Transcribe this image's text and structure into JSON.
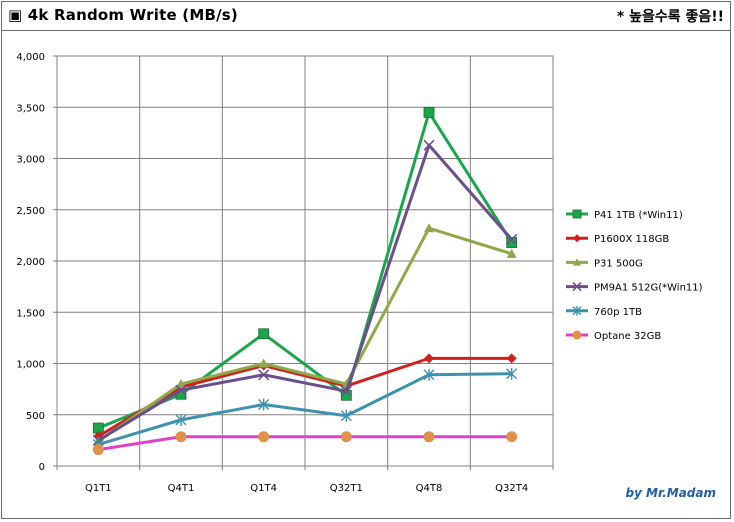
{
  "header": {
    "title": "▣ 4k Random Write (MB/s)",
    "note": "* 높을수록 좋음!!",
    "credit": "by Mr.Madam"
  },
  "chart_data": {
    "type": "line",
    "title": "4k Random Write (MB/s)",
    "categories": [
      "Q1T1",
      "Q4T1",
      "Q1T4",
      "Q32T1",
      "Q4T8",
      "Q32T4"
    ],
    "ylim": [
      0,
      4000
    ],
    "yticks": [
      0,
      500,
      1000,
      1500,
      2000,
      2500,
      3000,
      3500,
      4000
    ],
    "ytick_labels": [
      "0",
      "500",
      "1,000",
      "1,500",
      "2,000",
      "2,500",
      "3,000",
      "3,500",
      "4,000"
    ],
    "grid": true,
    "legend_position": "right",
    "series": [
      {
        "name": "P41 1TB (*Win11)",
        "color": "#1aa64a",
        "marker": "square",
        "values": [
          370,
          700,
          1290,
          690,
          3450,
          2180
        ]
      },
      {
        "name": "P1600X 118GB",
        "color": "#d01f1f",
        "marker": "diamond",
        "values": [
          290,
          770,
          980,
          780,
          1050,
          1050
        ]
      },
      {
        "name": "P31 500G",
        "color": "#8fa84a",
        "marker": "triangle",
        "values": [
          240,
          800,
          1000,
          800,
          2320,
          2070
        ]
      },
      {
        "name": "PM9A1 512G(*Win11)",
        "color": "#6a4f8e",
        "marker": "x",
        "values": [
          250,
          740,
          890,
          730,
          3130,
          2210
        ]
      },
      {
        "name": "760p 1TB",
        "color": "#3e92ad",
        "marker": "star",
        "values": [
          210,
          450,
          600,
          490,
          890,
          900
        ]
      },
      {
        "name": "Optane 32GB",
        "color": "#e040c8",
        "marker": "circle",
        "marker_color": "#e0914a",
        "values": [
          160,
          285,
          285,
          285,
          285,
          285
        ]
      }
    ]
  }
}
